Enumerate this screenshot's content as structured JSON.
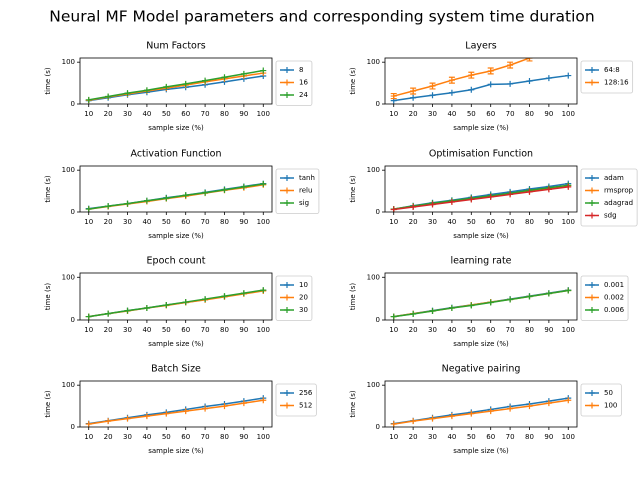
{
  "title": "Neural MF Model parameters and corresponding system time duration",
  "chart_data": [
    {
      "type": "line",
      "title": "Num Factors",
      "x_label": "sample size (%)",
      "y_label": "time (s)",
      "x": [
        10,
        20,
        30,
        40,
        50,
        60,
        70,
        80,
        90,
        100
      ],
      "xlim": [
        5.5,
        104.5
      ],
      "xticks": [
        10,
        20,
        30,
        40,
        50,
        60,
        70,
        80,
        90,
        100
      ],
      "ylim": [
        0,
        110
      ],
      "yticks": [
        0,
        100
      ],
      "legend": "outside-right",
      "series": [
        {
          "name": "8",
          "color": "#1f77b4",
          "values": [
            8,
            15,
            22,
            28,
            35,
            40,
            46,
            53,
            60,
            67
          ]
        },
        {
          "name": "16",
          "color": "#ff7f0e",
          "values": [
            9,
            17,
            24,
            31,
            38,
            45,
            53,
            60,
            67,
            74
          ]
        },
        {
          "name": "24",
          "color": "#2ca02c",
          "values": [
            10,
            18,
            26,
            33,
            41,
            48,
            56,
            64,
            72,
            80
          ]
        }
      ]
    },
    {
      "type": "line",
      "title": "Layers",
      "x_label": "sample size (%)",
      "y_label": "time (s)",
      "x": [
        10,
        20,
        30,
        40,
        50,
        60,
        70,
        80,
        90,
        100
      ],
      "xlim": [
        5.5,
        104.5
      ],
      "xticks": [
        10,
        20,
        30,
        40,
        50,
        60,
        70,
        80,
        90,
        100
      ],
      "ylim": [
        0,
        110
      ],
      "yticks": [
        0,
        100
      ],
      "legend": "outside-right",
      "series": [
        {
          "name": "64:8",
          "color": "#1f77b4",
          "values": [
            8,
            15,
            21,
            27,
            34,
            47,
            48,
            55,
            62,
            68
          ]
        },
        {
          "name": "128:16",
          "color": "#ff7f0e",
          "values": [
            19,
            31,
            43,
            57,
            69,
            79,
            93,
            110,
            null,
            null
          ],
          "errors": [
            6,
            7,
            7,
            7,
            7,
            7,
            7,
            7,
            null,
            null
          ]
        }
      ]
    },
    {
      "type": "line",
      "title": "Activation Function",
      "x_label": "sample size (%)",
      "y_label": "time (s)",
      "x": [
        10,
        20,
        30,
        40,
        50,
        60,
        70,
        80,
        90,
        100
      ],
      "xlim": [
        5.5,
        104.5
      ],
      "xticks": [
        10,
        20,
        30,
        40,
        50,
        60,
        70,
        80,
        90,
        100
      ],
      "ylim": [
        0,
        110
      ],
      "yticks": [
        0,
        100
      ],
      "legend": "outside-right",
      "series": [
        {
          "name": "tanh",
          "color": "#1f77b4",
          "values": [
            8,
            14,
            20,
            27,
            34,
            40,
            47,
            54,
            61,
            68
          ]
        },
        {
          "name": "relu",
          "color": "#ff7f0e",
          "values": [
            7,
            13,
            19,
            25,
            32,
            38,
            45,
            52,
            58,
            65
          ]
        },
        {
          "name": "sig",
          "color": "#2ca02c",
          "values": [
            7,
            14,
            20,
            27,
            33,
            40,
            46,
            53,
            60,
            67
          ]
        }
      ]
    },
    {
      "type": "line",
      "title": "Optimisation Function",
      "x_label": "sample size (%)",
      "y_label": "time (s)",
      "x": [
        10,
        20,
        30,
        40,
        50,
        60,
        70,
        80,
        90,
        100
      ],
      "xlim": [
        5.5,
        104.5
      ],
      "xticks": [
        10,
        20,
        30,
        40,
        50,
        60,
        70,
        80,
        90,
        100
      ],
      "ylim": [
        0,
        110
      ],
      "yticks": [
        0,
        100
      ],
      "legend": "outside-right",
      "series": [
        {
          "name": "adam",
          "color": "#1f77b4",
          "values": [
            7,
            15,
            22,
            28,
            35,
            42,
            48,
            55,
            61,
            68
          ]
        },
        {
          "name": "rmsprop",
          "color": "#ff7f0e",
          "values": [
            7,
            14,
            20,
            26,
            32,
            38,
            44,
            50,
            56,
            63
          ]
        },
        {
          "name": "adagrad",
          "color": "#2ca02c",
          "values": [
            7,
            14,
            21,
            27,
            33,
            39,
            45,
            52,
            58,
            64
          ]
        },
        {
          "name": "sdg",
          "color": "#d62728",
          "values": [
            6,
            12,
            18,
            24,
            30,
            36,
            42,
            48,
            54,
            60
          ]
        }
      ]
    },
    {
      "type": "line",
      "title": "Epoch count",
      "x_label": "sample size (%)",
      "y_label": "time (s)",
      "x": [
        10,
        20,
        30,
        40,
        50,
        60,
        70,
        80,
        90,
        100
      ],
      "xlim": [
        5.5,
        104.5
      ],
      "xticks": [
        10,
        20,
        30,
        40,
        50,
        60,
        70,
        80,
        90,
        100
      ],
      "ylim": [
        0,
        110
      ],
      "yticks": [
        0,
        100
      ],
      "legend": "outside-right",
      "series": [
        {
          "name": "10",
          "color": "#1f77b4",
          "values": [
            8,
            15,
            22,
            28,
            35,
            41,
            48,
            55,
            62,
            69
          ]
        },
        {
          "name": "20",
          "color": "#ff7f0e",
          "values": [
            8,
            15,
            21,
            28,
            34,
            41,
            47,
            54,
            61,
            68
          ]
        },
        {
          "name": "30",
          "color": "#2ca02c",
          "values": [
            8,
            15,
            22,
            28,
            35,
            42,
            49,
            56,
            63,
            70
          ]
        }
      ]
    },
    {
      "type": "line",
      "title": "learning rate",
      "x_label": "sample size (%)",
      "y_label": "time (s)",
      "x": [
        10,
        20,
        30,
        40,
        50,
        60,
        70,
        80,
        90,
        100
      ],
      "xlim": [
        5.5,
        104.5
      ],
      "xticks": [
        10,
        20,
        30,
        40,
        50,
        60,
        70,
        80,
        90,
        100
      ],
      "ylim": [
        0,
        110
      ],
      "yticks": [
        0,
        100
      ],
      "legend": "outside-right",
      "series": [
        {
          "name": "0.001",
          "color": "#1f77b4",
          "values": [
            8,
            15,
            22,
            29,
            35,
            42,
            49,
            56,
            63,
            70
          ]
        },
        {
          "name": "0.002",
          "color": "#ff7f0e",
          "values": [
            8,
            15,
            21,
            28,
            35,
            42,
            48,
            55,
            62,
            69
          ]
        },
        {
          "name": "0.006",
          "color": "#2ca02c",
          "values": [
            8,
            14,
            21,
            28,
            34,
            41,
            48,
            55,
            62,
            69
          ]
        }
      ]
    },
    {
      "type": "line",
      "title": "Batch Size",
      "x_label": "sample size (%)",
      "y_label": "time (s)",
      "x": [
        10,
        20,
        30,
        40,
        50,
        60,
        70,
        80,
        90,
        100
      ],
      "xlim": [
        5.5,
        104.5
      ],
      "xticks": [
        10,
        20,
        30,
        40,
        50,
        60,
        70,
        80,
        90,
        100
      ],
      "ylim": [
        0,
        110
      ],
      "yticks": [
        0,
        100
      ],
      "legend": "outside-right",
      "series": [
        {
          "name": "256",
          "color": "#1f77b4",
          "values": [
            8,
            15,
            22,
            29,
            35,
            42,
            49,
            55,
            62,
            69
          ]
        },
        {
          "name": "512",
          "color": "#ff7f0e",
          "values": [
            7,
            14,
            20,
            26,
            32,
            38,
            44,
            50,
            57,
            64
          ]
        }
      ]
    },
    {
      "type": "line",
      "title": "Negative pairing",
      "x_label": "sample size (%)",
      "y_label": "time (s)",
      "x": [
        10,
        20,
        30,
        40,
        50,
        60,
        70,
        80,
        90,
        100
      ],
      "xlim": [
        5.5,
        104.5
      ],
      "xticks": [
        10,
        20,
        30,
        40,
        50,
        60,
        70,
        80,
        90,
        100
      ],
      "ylim": [
        0,
        110
      ],
      "yticks": [
        0,
        100
      ],
      "legend": "outside-right",
      "series": [
        {
          "name": "50",
          "color": "#1f77b4",
          "values": [
            8,
            15,
            22,
            29,
            35,
            42,
            49,
            55,
            62,
            69
          ]
        },
        {
          "name": "100",
          "color": "#ff7f0e",
          "values": [
            7,
            14,
            20,
            26,
            32,
            38,
            44,
            50,
            57,
            64
          ]
        }
      ]
    }
  ]
}
